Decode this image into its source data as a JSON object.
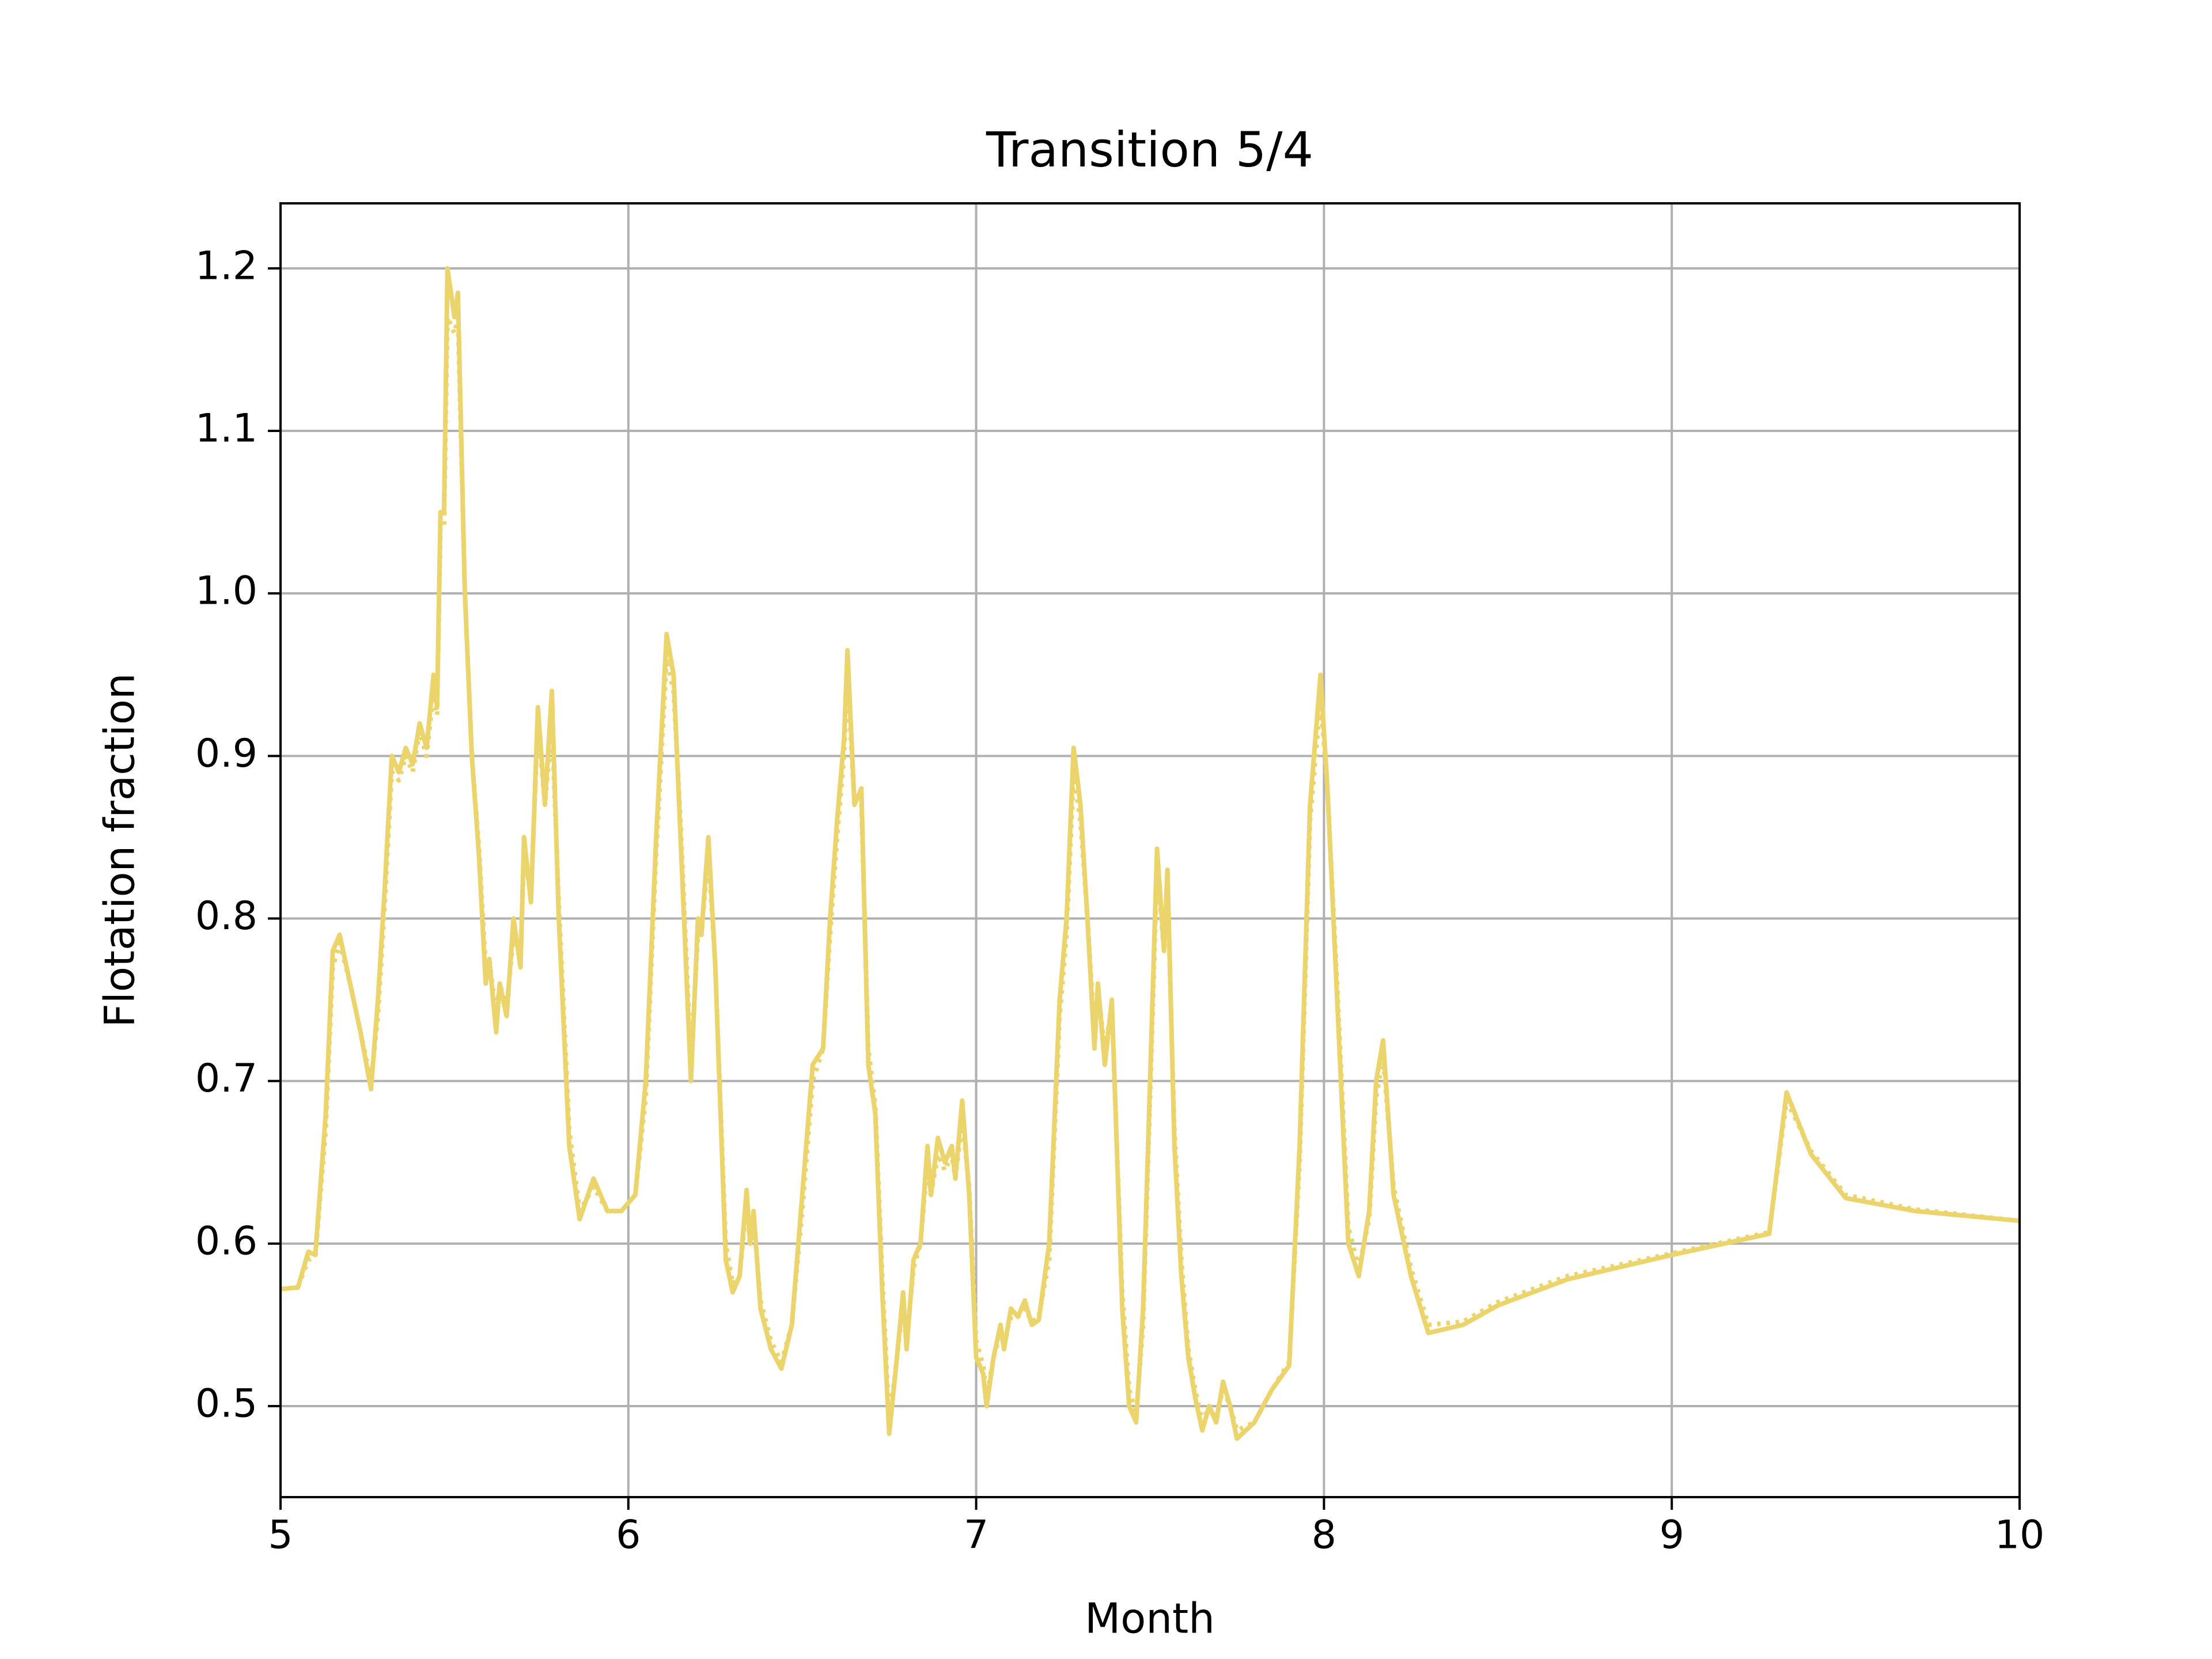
{
  "chart_data": {
    "type": "line",
    "title": "Transition 5/4",
    "x_label": "Month",
    "y_label": "Flotation fraction",
    "x": [
      5.0,
      5.05,
      5.08,
      5.1,
      5.13,
      5.15,
      5.17,
      5.2,
      5.23,
      5.26,
      5.28,
      5.3,
      5.32,
      5.34,
      5.36,
      5.38,
      5.4,
      5.42,
      5.44,
      5.45,
      5.46,
      5.47,
      5.48,
      5.5,
      5.51,
      5.53,
      5.55,
      5.57,
      5.59,
      5.6,
      5.62,
      5.63,
      5.65,
      5.67,
      5.69,
      5.7,
      5.72,
      5.74,
      5.76,
      5.78,
      5.8,
      5.83,
      5.86,
      5.9,
      5.94,
      5.98,
      6.02,
      6.05,
      6.08,
      6.11,
      6.13,
      6.15,
      6.18,
      6.2,
      6.21,
      6.23,
      6.25,
      6.28,
      6.3,
      6.32,
      6.34,
      6.35,
      6.36,
      6.38,
      6.41,
      6.44,
      6.47,
      6.5,
      6.53,
      6.56,
      6.58,
      6.6,
      6.62,
      6.63,
      6.65,
      6.67,
      6.69,
      6.71,
      6.73,
      6.75,
      6.77,
      6.79,
      6.8,
      6.82,
      6.84,
      6.86,
      6.87,
      6.89,
      6.91,
      6.93,
      6.94,
      6.96,
      6.98,
      7.0,
      7.02,
      7.03,
      7.05,
      7.07,
      7.08,
      7.1,
      7.12,
      7.14,
      7.16,
      7.18,
      7.21,
      7.24,
      7.26,
      7.28,
      7.3,
      7.32,
      7.34,
      7.35,
      7.37,
      7.39,
      7.42,
      7.44,
      7.46,
      7.48,
      7.5,
      7.52,
      7.54,
      7.55,
      7.57,
      7.59,
      7.61,
      7.63,
      7.65,
      7.67,
      7.69,
      7.71,
      7.73,
      7.75,
      7.8,
      7.85,
      7.9,
      7.93,
      7.96,
      7.99,
      8.01,
      8.04,
      8.07,
      8.1,
      8.13,
      8.15,
      8.17,
      8.2,
      8.25,
      8.3,
      8.4,
      8.5,
      8.7,
      9.0,
      9.28,
      9.33,
      9.4,
      9.5,
      9.7,
      10.0
    ],
    "series": [
      {
        "color": "#ebd46c",
        "style": "solid",
        "values": [
          0.572,
          0.573,
          0.595,
          0.593,
          0.68,
          0.78,
          0.79,
          0.76,
          0.73,
          0.695,
          0.75,
          0.82,
          0.9,
          0.89,
          0.905,
          0.895,
          0.92,
          0.905,
          0.95,
          0.93,
          1.05,
          1.05,
          1.2,
          1.17,
          1.185,
          1.0,
          0.9,
          0.84,
          0.76,
          0.775,
          0.73,
          0.76,
          0.74,
          0.8,
          0.77,
          0.85,
          0.81,
          0.93,
          0.87,
          0.94,
          0.8,
          0.66,
          0.615,
          0.64,
          0.62,
          0.62,
          0.63,
          0.7,
          0.85,
          0.975,
          0.95,
          0.85,
          0.7,
          0.8,
          0.79,
          0.85,
          0.77,
          0.59,
          0.57,
          0.58,
          0.633,
          0.6,
          0.62,
          0.56,
          0.535,
          0.523,
          0.55,
          0.63,
          0.71,
          0.72,
          0.8,
          0.86,
          0.91,
          0.965,
          0.87,
          0.88,
          0.71,
          0.68,
          0.57,
          0.483,
          0.525,
          0.57,
          0.535,
          0.59,
          0.6,
          0.66,
          0.63,
          0.665,
          0.65,
          0.66,
          0.64,
          0.688,
          0.63,
          0.53,
          0.52,
          0.5,
          0.53,
          0.55,
          0.535,
          0.56,
          0.555,
          0.565,
          0.55,
          0.553,
          0.6,
          0.75,
          0.8,
          0.905,
          0.87,
          0.8,
          0.72,
          0.76,
          0.71,
          0.75,
          0.56,
          0.5,
          0.49,
          0.56,
          0.7,
          0.843,
          0.78,
          0.83,
          0.66,
          0.58,
          0.53,
          0.505,
          0.485,
          0.5,
          0.49,
          0.515,
          0.5,
          0.48,
          0.49,
          0.51,
          0.525,
          0.66,
          0.87,
          0.95,
          0.88,
          0.74,
          0.6,
          0.58,
          0.62,
          0.7,
          0.725,
          0.63,
          0.58,
          0.545,
          0.55,
          0.562,
          0.578,
          0.593,
          0.606,
          0.693,
          0.655,
          0.628,
          0.62,
          0.614
        ]
      },
      {
        "color": "#ebd46c",
        "style": "dotted",
        "values": [
          0.572,
          0.573,
          0.59,
          0.592,
          0.67,
          0.77,
          0.785,
          0.76,
          0.73,
          0.7,
          0.74,
          0.81,
          0.89,
          0.885,
          0.9,
          0.89,
          0.915,
          0.9,
          0.94,
          0.925,
          1.04,
          1.04,
          1.17,
          1.16,
          1.17,
          1.0,
          0.9,
          0.845,
          0.77,
          0.775,
          0.74,
          0.76,
          0.745,
          0.79,
          0.775,
          0.84,
          0.815,
          0.92,
          0.87,
          0.92,
          0.81,
          0.67,
          0.62,
          0.635,
          0.62,
          0.62,
          0.63,
          0.69,
          0.84,
          0.96,
          0.94,
          0.86,
          0.71,
          0.79,
          0.79,
          0.84,
          0.77,
          0.6,
          0.575,
          0.58,
          0.625,
          0.6,
          0.615,
          0.565,
          0.54,
          0.527,
          0.55,
          0.62,
          0.7,
          0.72,
          0.79,
          0.85,
          0.9,
          0.95,
          0.87,
          0.87,
          0.72,
          0.685,
          0.58,
          0.49,
          0.525,
          0.565,
          0.54,
          0.585,
          0.6,
          0.65,
          0.63,
          0.655,
          0.645,
          0.655,
          0.64,
          0.675,
          0.635,
          0.54,
          0.525,
          0.505,
          0.53,
          0.545,
          0.54,
          0.555,
          0.555,
          0.56,
          0.552,
          0.555,
          0.59,
          0.74,
          0.79,
          0.89,
          0.86,
          0.8,
          0.73,
          0.755,
          0.72,
          0.745,
          0.57,
          0.51,
          0.495,
          0.55,
          0.69,
          0.83,
          0.78,
          0.82,
          0.67,
          0.59,
          0.535,
          0.51,
          0.49,
          0.5,
          0.495,
          0.51,
          0.5,
          0.485,
          0.49,
          0.51,
          0.527,
          0.65,
          0.86,
          0.935,
          0.88,
          0.75,
          0.61,
          0.585,
          0.615,
          0.69,
          0.715,
          0.635,
          0.585,
          0.55,
          0.552,
          0.564,
          0.58,
          0.594,
          0.607,
          0.688,
          0.657,
          0.63,
          0.621,
          0.614
        ]
      }
    ],
    "xlim": [
      5,
      10
    ],
    "xticks": [
      5,
      6,
      7,
      8,
      9,
      10
    ],
    "ylim": [
      0.444,
      1.24
    ],
    "yticks": [
      0.5,
      0.6,
      0.7,
      0.8,
      0.9,
      {
        "value": 1,
        "label": "1.0"
      },
      1.1,
      1.2
    ],
    "grid": true
  }
}
